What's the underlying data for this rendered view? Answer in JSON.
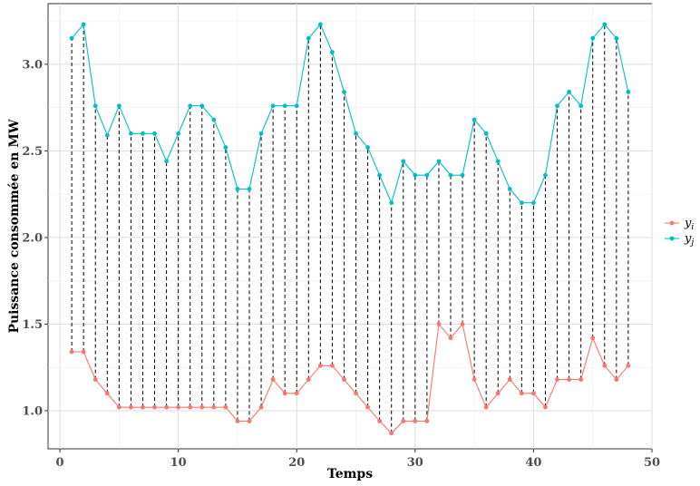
{
  "chart_data": {
    "type": "line",
    "title": "",
    "xlabel": "Temps",
    "ylabel": "Puissance consommée en MW",
    "xlim": [
      -1,
      50
    ],
    "ylim": [
      0.78,
      3.35
    ],
    "xticks": [
      0,
      10,
      20,
      30,
      40,
      50
    ],
    "yticks": [
      1.0,
      1.5,
      2.0,
      2.5,
      3.0
    ],
    "xtick_labels": [
      "0",
      "10",
      "20",
      "30",
      "40",
      "50"
    ],
    "ytick_labels": [
      "1.0",
      "1.5",
      "2.0",
      "2.5",
      "3.0"
    ],
    "grid": true,
    "legend_position": "right",
    "connectors": "dashed vertical segments joining y_i and y_j at each time step",
    "x": [
      1,
      2,
      3,
      4,
      5,
      6,
      7,
      8,
      9,
      10,
      11,
      12,
      13,
      14,
      15,
      16,
      17,
      18,
      19,
      20,
      21,
      22,
      23,
      24,
      25,
      26,
      27,
      28,
      29,
      30,
      31,
      32,
      33,
      34,
      35,
      36,
      37,
      38,
      39,
      40,
      41,
      42,
      43,
      44,
      45,
      46,
      47,
      48
    ],
    "series": [
      {
        "name": "y",
        "subscript": "i",
        "color": "#F8766D",
        "values": [
          1.34,
          1.34,
          1.18,
          1.1,
          1.02,
          1.02,
          1.02,
          1.02,
          1.02,
          1.02,
          1.02,
          1.02,
          1.02,
          1.02,
          0.94,
          0.94,
          1.02,
          1.18,
          1.1,
          1.1,
          1.18,
          1.26,
          1.26,
          1.18,
          1.1,
          1.02,
          0.94,
          0.87,
          0.94,
          0.94,
          0.94,
          1.5,
          1.42,
          1.5,
          1.18,
          1.02,
          1.1,
          1.18,
          1.1,
          1.1,
          1.02,
          1.18,
          1.18,
          1.18,
          1.42,
          1.26,
          1.18,
          1.26
        ]
      },
      {
        "name": "y",
        "subscript": "j",
        "color": "#00BFC4",
        "values": [
          3.15,
          3.23,
          2.76,
          2.59,
          2.76,
          2.6,
          2.6,
          2.6,
          2.44,
          2.6,
          2.76,
          2.76,
          2.68,
          2.52,
          2.28,
          2.28,
          2.6,
          2.76,
          2.76,
          2.76,
          3.15,
          3.23,
          3.07,
          2.84,
          2.6,
          2.52,
          2.36,
          2.2,
          2.44,
          2.36,
          2.36,
          2.44,
          2.36,
          2.36,
          2.68,
          2.6,
          2.44,
          2.28,
          2.2,
          2.2,
          2.36,
          2.76,
          2.84,
          2.76,
          3.15,
          3.23,
          3.15,
          2.84
        ]
      }
    ]
  }
}
